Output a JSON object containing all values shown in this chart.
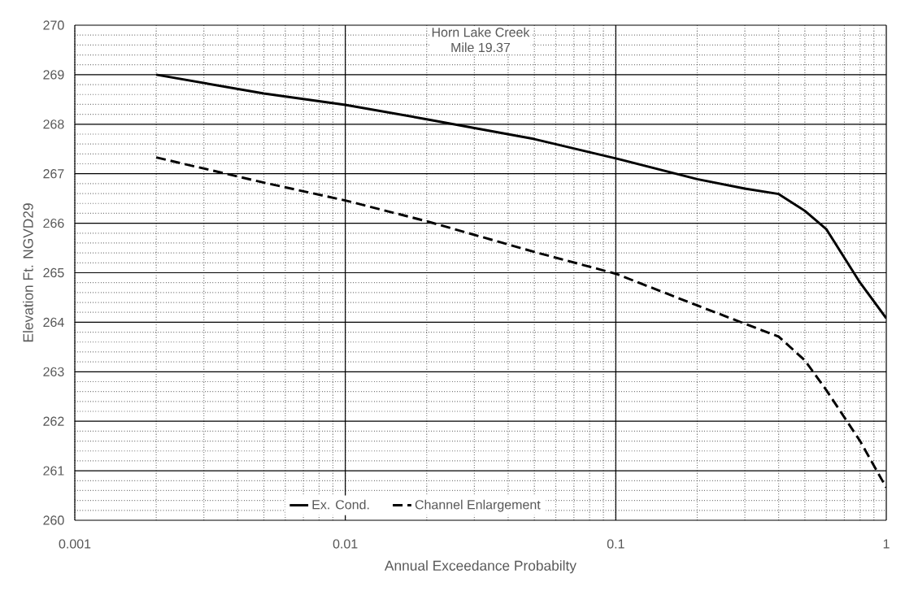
{
  "chart_data": {
    "type": "line",
    "title": "Horn Lake Creek",
    "subtitle": "Mile 19.37",
    "xlabel": "Annual Exceedance Probabilty",
    "ylabel": "Elevation Ft. NGVD29",
    "log": "x",
    "grid": true,
    "legend": "bottom",
    "marker": "none",
    "xlim": [
      0.001,
      1
    ],
    "xticks": [
      0.001,
      0.01,
      0.1,
      1
    ],
    "ylim": [
      260,
      270
    ],
    "yticks": [
      260,
      261,
      262,
      263,
      264,
      265,
      266,
      267,
      268,
      269,
      270
    ],
    "series": [
      {
        "name": "Ex. Cond.",
        "color": "#000000",
        "line_style": "solid",
        "x": [
          0.002,
          0.005,
          0.01,
          0.02,
          0.05,
          0.1,
          0.2,
          0.3,
          0.4,
          0.5,
          0.6,
          0.8,
          1
        ],
        "values": [
          269.0,
          268.62,
          268.39,
          268.1,
          267.7,
          267.31,
          266.89,
          266.7,
          266.59,
          266.25,
          265.88,
          264.8,
          264.08
        ]
      },
      {
        "name": "Channel Enlargement",
        "color": "#000000",
        "line_style": "dashed",
        "x": [
          0.002,
          0.005,
          0.01,
          0.02,
          0.05,
          0.1,
          0.2,
          0.3,
          0.4,
          0.5,
          0.6,
          0.8,
          1
        ],
        "values": [
          267.33,
          266.82,
          266.46,
          266.04,
          265.42,
          264.98,
          264.34,
          263.97,
          263.71,
          263.23,
          262.63,
          261.6,
          260.66
        ]
      }
    ]
  }
}
